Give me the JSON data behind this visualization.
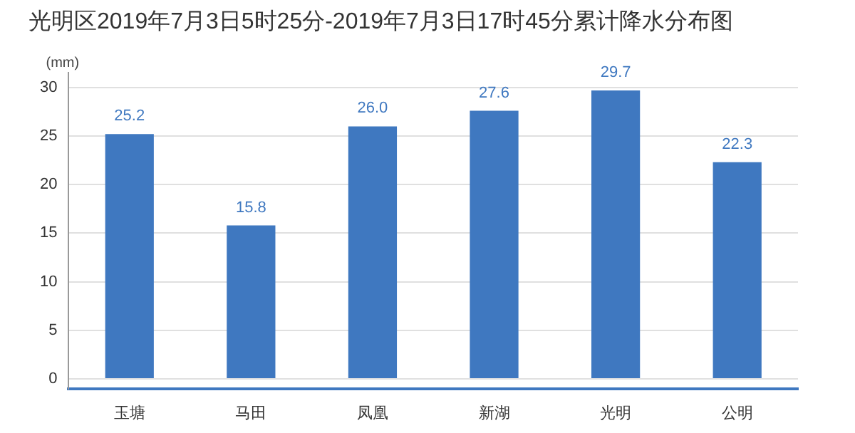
{
  "chart_data": {
    "type": "bar",
    "title": "光明区2019年7月3日5时25分-2019年7月3日17时45分累计降水分布图",
    "ylabel": "(mm)",
    "categories": [
      "玉塘",
      "马田",
      "凤凰",
      "新湖",
      "光明",
      "公明"
    ],
    "values": [
      25.2,
      15.8,
      26.0,
      27.6,
      29.7,
      22.3
    ],
    "value_labels": [
      "25.2",
      "15.8",
      "26.0",
      "27.6",
      "29.7",
      "22.3"
    ],
    "color": "#3f78c0",
    "ylim": [
      -1,
      31.5
    ],
    "yticks": [
      0,
      5,
      10,
      15,
      20,
      25,
      30
    ],
    "grid": "y"
  }
}
